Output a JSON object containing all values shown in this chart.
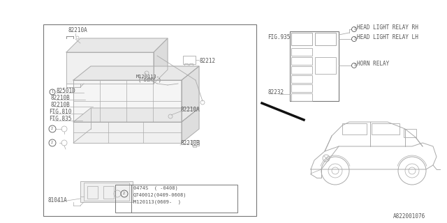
{
  "bg_color": "#ffffff",
  "line_color": "#aaaaaa",
  "dark_line": "#777777",
  "text_color": "#555555",
  "part_number": "A822001076",
  "legend_text": [
    "0474S  ( -0408)",
    "Q740012(0409-0608)",
    "M120113(0609-  )"
  ]
}
